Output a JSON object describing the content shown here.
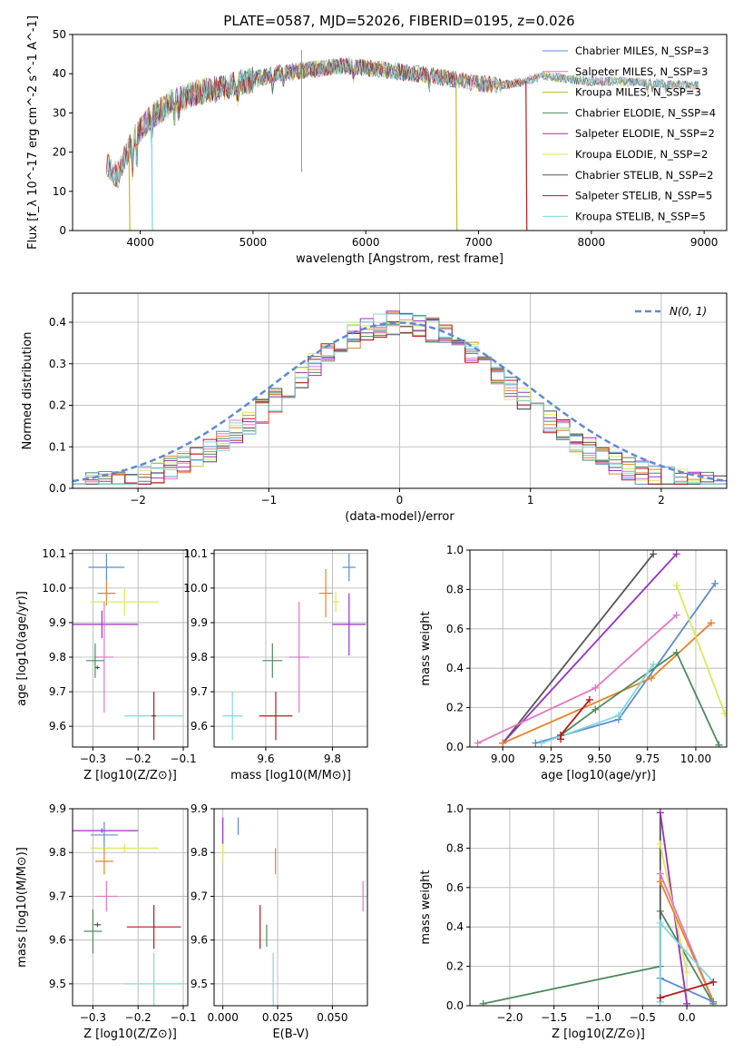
{
  "figure_title": "PLATE=0587, MJD=52026, FIBERID=0195, z=0.026",
  "colors": {
    "chabrier_miles": "#5b8ad8",
    "salpeter_miles": "#e377c2",
    "kroupa_miles": "#bcbd22",
    "chabrier_elodie": "#4e8a5a",
    "salpeter_elodie": "#9a2fc4",
    "kroupa_elodie": "#dbe85a",
    "chabrier_stelib": "#555555",
    "salpeter_stelib": "#b81a1a",
    "kroupa_stelib": "#7fd8df",
    "orange": "#e8832a",
    "gauss": "#5b8ad8",
    "grid": "#b0b0b0"
  },
  "chart_data": [
    {
      "id": "spectrum",
      "type": "line",
      "title": "PLATE=0587, MJD=52026, FIBERID=0195, z=0.026",
      "xlabel": "wavelength [Angstrom, rest frame]",
      "ylabel": "Flux [f_λ 10^-17 erg cm^-2 s^-1 A^-1]",
      "xlim": [
        3400,
        9200
      ],
      "ylim": [
        0,
        50
      ],
      "xticks": [
        4000,
        5000,
        6000,
        7000,
        8000,
        9000
      ],
      "yticks": [
        0,
        10,
        20,
        30,
        40,
        50
      ],
      "grid": false,
      "legend_position": "top-right",
      "legend": [
        {
          "label": "Chabrier MILES, N_SSP=3",
          "color_key": "chabrier_miles"
        },
        {
          "label": "Salpeter MILES, N_SSP=3",
          "color_key": "salpeter_miles"
        },
        {
          "label": "Kroupa MILES, N_SSP=3",
          "color_key": "kroupa_miles"
        },
        {
          "label": "Chabrier ELODIE, N_SSP=4",
          "color_key": "chabrier_elodie"
        },
        {
          "label": "Salpeter ELODIE, N_SSP=2",
          "color_key": "salpeter_elodie"
        },
        {
          "label": "Kroupa ELODIE, N_SSP=2",
          "color_key": "kroupa_elodie"
        },
        {
          "label": "Chabrier STELIB, N_SSP=2",
          "color_key": "chabrier_stelib"
        },
        {
          "label": "Salpeter STELIB, N_SSP=5",
          "color_key": "salpeter_stelib"
        },
        {
          "label": "Kroupa STELIB, N_SSP=5",
          "color_key": "kroupa_stelib"
        }
      ],
      "continuum": [
        [
          3700,
          17
        ],
        [
          3800,
          14
        ],
        [
          3900,
          21
        ],
        [
          4000,
          26
        ],
        [
          4100,
          29
        ],
        [
          4300,
          33
        ],
        [
          4500,
          35
        ],
        [
          4800,
          37
        ],
        [
          5000,
          38.5
        ],
        [
          5200,
          40
        ],
        [
          5500,
          41
        ],
        [
          5800,
          42
        ],
        [
          6000,
          41.5
        ],
        [
          6300,
          40.5
        ],
        [
          6600,
          39.5
        ],
        [
          6800,
          38.5
        ],
        [
          7000,
          37.5
        ],
        [
          7200,
          37
        ],
        [
          7400,
          38
        ],
        [
          7600,
          39.5
        ],
        [
          7800,
          38.5
        ],
        [
          8000,
          38
        ],
        [
          8300,
          38
        ],
        [
          8600,
          37.5
        ],
        [
          8900,
          37
        ]
      ],
      "series_ranges": [
        {
          "name": "Chabrier MILES",
          "color_key": "chabrier_miles",
          "x": [
            3700,
            8950
          ]
        },
        {
          "name": "Salpeter MILES",
          "color_key": "salpeter_miles",
          "x": [
            3700,
            8950
          ]
        },
        {
          "name": "Kroupa MILES",
          "color_key": "kroupa_miles",
          "x": [
            3700,
            8950
          ]
        },
        {
          "name": "Chabrier ELODIE",
          "color_key": "chabrier_elodie",
          "x": [
            3900,
            6800
          ]
        },
        {
          "name": "Salpeter ELODIE",
          "color_key": "salpeter_elodie",
          "x": [
            3900,
            6800
          ]
        },
        {
          "name": "Kroupa ELODIE",
          "color_key": "kroupa_elodie",
          "x": [
            3900,
            6800
          ]
        },
        {
          "name": "Chabrier STELIB",
          "color_key": "chabrier_stelib",
          "x": [
            3700,
            8950
          ]
        },
        {
          "name": "Salpeter STELIB",
          "color_key": "salpeter_stelib",
          "x": [
            3700,
            7420
          ]
        },
        {
          "name": "Kroupa STELIB",
          "color_key": "kroupa_stelib",
          "x": [
            3700,
            8950
          ]
        }
      ],
      "dropouts": [
        {
          "x": 3900,
          "color_key": "kroupa_miles"
        },
        {
          "x": 4100,
          "color_key": "kroupa_stelib"
        },
        {
          "x": 6800,
          "color_key": "kroupa_miles"
        },
        {
          "x": 7420,
          "color_key": "salpeter_stelib"
        }
      ],
      "spike": {
        "x": 5430,
        "y_low": 15,
        "y_high": 46
      }
    },
    {
      "id": "residuals",
      "type": "histogram",
      "xlabel": "(data-model)/error",
      "ylabel": "Normed distribution",
      "xlim": [
        -2.5,
        2.5
      ],
      "ylim": [
        0,
        0.47
      ],
      "xticks": [
        -2,
        -1,
        0,
        1,
        2
      ],
      "yticks": [
        0.0,
        0.1,
        0.2,
        0.3,
        0.4
      ],
      "grid": true,
      "legend_position": "top-right",
      "legend": [
        {
          "label": "N(0, 1)",
          "color_key": "gauss",
          "style": "dashed"
        }
      ],
      "bins": {
        "start": -2.5,
        "width": 0.1,
        "count": 50
      },
      "series_keys": [
        "chabrier_miles",
        "salpeter_miles",
        "orange",
        "chabrier_elodie",
        "salpeter_elodie",
        "kroupa_elodie",
        "chabrier_stelib",
        "salpeter_stelib",
        "kroupa_stelib"
      ]
    },
    {
      "id": "age_vs_Z",
      "type": "errorbar",
      "xlabel": "Z [log10(Z/Z⊙)]",
      "ylabel": "age [log10(age/yr)]",
      "xlim": [
        -0.345,
        -0.09
      ],
      "ylim": [
        9.54,
        10.11
      ],
      "xticks": [
        -0.3,
        -0.2,
        -0.1
      ],
      "yticks": [
        9.6,
        9.7,
        9.8,
        9.9,
        10.0,
        10.1
      ],
      "grid": true,
      "points": [
        {
          "color_key": "chabrier_miles",
          "x": -0.27,
          "y": 10.06,
          "xerr": 0.04,
          "yerr": 0.04
        },
        {
          "color_key": "orange",
          "x": -0.27,
          "y": 9.985,
          "xerr": 0.02,
          "yerr": 0.035
        },
        {
          "color_key": "kroupa_elodie",
          "x": -0.23,
          "y": 9.96,
          "xerr": 0.075,
          "yerr": 0.04
        },
        {
          "color_key": "salpeter_elodie",
          "x": -0.28,
          "y": 9.895,
          "xerr": 0.08,
          "yerr": 0.04
        },
        {
          "color_key": "salpeter_miles",
          "x": -0.275,
          "y": 9.8,
          "xerr": 0.02,
          "yerr": 0.16
        },
        {
          "color_key": "chabrier_elodie",
          "x": -0.295,
          "y": 9.79,
          "xerr": 0.02,
          "yerr": 0.05
        },
        {
          "color_key": "chabrier_stelib",
          "x": -0.29,
          "y": 9.77,
          "xerr": 0.005,
          "yerr": 0.005
        },
        {
          "color_key": "kroupa_stelib",
          "x": -0.165,
          "y": 9.63,
          "xerr": 0.065,
          "yerr": 0.005
        },
        {
          "color_key": "salpeter_stelib",
          "x": -0.165,
          "y": 9.63,
          "xerr": 0.005,
          "yerr": 0.07
        }
      ]
    },
    {
      "id": "age_vs_mass",
      "type": "errorbar",
      "xlabel": "mass [log10(M/M⊙)]",
      "ylabel": "",
      "xlim": [
        9.445,
        9.905
      ],
      "ylim": [
        9.54,
        10.11
      ],
      "xticks": [
        9.6,
        9.8
      ],
      "yticks": [
        9.6,
        9.7,
        9.8,
        9.9,
        10.0,
        10.1
      ],
      "grid": true,
      "points": [
        {
          "color_key": "chabrier_miles",
          "x": 9.85,
          "y": 10.06,
          "xerr": 0.02,
          "yerr": 0.04
        },
        {
          "color_key": "orange",
          "x": 9.78,
          "y": 9.985,
          "xerr": 0.02,
          "yerr": 0.07
        },
        {
          "color_key": "kroupa_elodie",
          "x": 9.81,
          "y": 9.96,
          "xerr": 0.01,
          "yerr": 0.03
        },
        {
          "color_key": "salpeter_elodie",
          "x": 9.85,
          "y": 9.895,
          "xerr": 0.05,
          "yerr": 0.09
        },
        {
          "color_key": "salpeter_miles",
          "x": 9.7,
          "y": 9.8,
          "xerr": 0.03,
          "yerr": 0.16
        },
        {
          "color_key": "chabrier_elodie",
          "x": 9.62,
          "y": 9.79,
          "xerr": 0.03,
          "yerr": 0.05
        },
        {
          "color_key": "kroupa_stelib",
          "x": 9.5,
          "y": 9.63,
          "xerr": 0.03,
          "yerr": 0.07
        },
        {
          "color_key": "salpeter_stelib",
          "x": 9.63,
          "y": 9.63,
          "xerr": 0.05,
          "yerr": 0.07
        }
      ]
    },
    {
      "id": "mass_weight_vs_age",
      "type": "line",
      "xlabel": "age [log10(age/yr)]",
      "ylabel": "mass weight",
      "xlim": [
        8.83,
        10.16
      ],
      "ylim": [
        0,
        1
      ],
      "xticks": [
        9.0,
        9.25,
        9.5,
        9.75,
        10.0
      ],
      "yticks": [
        0.0,
        0.2,
        0.4,
        0.6,
        0.8,
        1.0
      ],
      "grid": true,
      "series": [
        {
          "color_key": "chabrier_stelib",
          "points": [
            [
              9.0,
              0.02
            ],
            [
              9.78,
              0.98
            ]
          ]
        },
        {
          "color_key": "salpeter_elodie",
          "points": [
            [
              9.0,
              0.02
            ],
            [
              9.9,
              0.98
            ]
          ]
        },
        {
          "color_key": "salpeter_miles",
          "points": [
            [
              8.87,
              0.02
            ],
            [
              9.48,
              0.3
            ],
            [
              9.9,
              0.67
            ]
          ]
        },
        {
          "color_key": "chabrier_miles",
          "points": [
            [
              9.17,
              0.02
            ],
            [
              9.6,
              0.14
            ],
            [
              10.1,
              0.83
            ]
          ]
        },
        {
          "color_key": "orange",
          "points": [
            [
              9.0,
              0.02
            ],
            [
              9.77,
              0.35
            ],
            [
              10.08,
              0.63
            ]
          ]
        },
        {
          "color_key": "kroupa_elodie",
          "points": [
            [
              9.9,
              0.82
            ],
            [
              10.15,
              0.17
            ]
          ]
        },
        {
          "color_key": "chabrier_elodie",
          "points": [
            [
              9.3,
              0.06
            ],
            [
              9.48,
              0.19
            ],
            [
              9.9,
              0.48
            ],
            [
              10.12,
              0.01
            ]
          ]
        },
        {
          "color_key": "kroupa_stelib",
          "points": [
            [
              9.2,
              0.02
            ],
            [
              9.6,
              0.16
            ],
            [
              9.78,
              0.42
            ]
          ]
        },
        {
          "color_key": "salpeter_stelib",
          "points": [
            [
              9.3,
              0.04
            ],
            [
              9.3,
              0.06
            ],
            [
              9.45,
              0.24
            ]
          ]
        }
      ]
    },
    {
      "id": "mass_vs_Z",
      "type": "errorbar",
      "xlabel": "Z [log10(Z/Z⊙)]",
      "ylabel": "mass [log10(M/M⊙)]",
      "xlim": [
        -0.345,
        -0.09
      ],
      "ylim": [
        9.45,
        9.9
      ],
      "xticks": [
        -0.3,
        -0.2,
        -0.1
      ],
      "yticks": [
        9.5,
        9.6,
        9.7,
        9.8,
        9.9
      ],
      "grid": true,
      "points": [
        {
          "color_key": "chabrier_miles",
          "x": -0.275,
          "y": 9.84,
          "xerr": 0.03,
          "yerr": 0.03
        },
        {
          "color_key": "salpeter_elodie",
          "x": -0.28,
          "y": 9.85,
          "xerr": 0.08,
          "yerr": 0.005
        },
        {
          "color_key": "kroupa_elodie",
          "x": -0.23,
          "y": 9.81,
          "xerr": 0.075,
          "yerr": 0.01
        },
        {
          "color_key": "orange",
          "x": -0.275,
          "y": 9.78,
          "xerr": 0.02,
          "yerr": 0.03
        },
        {
          "color_key": "salpeter_miles",
          "x": -0.27,
          "y": 9.7,
          "xerr": 0.025,
          "yerr": 0.035
        },
        {
          "color_key": "chabrier_stelib",
          "x": -0.29,
          "y": 9.635,
          "xerr": 0.008,
          "yerr": 0.005
        },
        {
          "color_key": "chabrier_elodie",
          "x": -0.3,
          "y": 9.62,
          "xerr": 0.02,
          "yerr": 0.05
        },
        {
          "color_key": "salpeter_stelib",
          "x": -0.165,
          "y": 9.63,
          "xerr": 0.06,
          "yerr": 0.05
        },
        {
          "color_key": "kroupa_stelib",
          "x": -0.165,
          "y": 9.5,
          "xerr": 0.065,
          "yerr": 0.07
        }
      ]
    },
    {
      "id": "mass_vs_ebv",
      "type": "errorbar",
      "xlabel": "E(B-V)",
      "ylabel": "",
      "xlim": [
        -0.004,
        0.066
      ],
      "ylim": [
        9.45,
        9.9
      ],
      "xticks": [
        0.0,
        0.025,
        0.05
      ],
      "yticks": [
        9.5,
        9.6,
        9.7,
        9.8,
        9.9
      ],
      "grid": true,
      "points": [
        {
          "color_key": "salpeter_elodie",
          "x": 0.0,
          "y": 9.85,
          "xerr": 0,
          "yerr": 0.03
        },
        {
          "color_key": "chabrier_miles",
          "x": 0.007,
          "y": 9.86,
          "xerr": 0,
          "yerr": 0.02
        },
        {
          "color_key": "kroupa_elodie",
          "x": 0.0,
          "y": 9.8,
          "xerr": 0,
          "yerr": 0.02
        },
        {
          "color_key": "orange",
          "x": 0.024,
          "y": 9.78,
          "xerr": 0,
          "yerr": 0.03
        },
        {
          "color_key": "salpeter_miles",
          "x": 0.064,
          "y": 9.7,
          "xerr": 0,
          "yerr": 0.035
        },
        {
          "color_key": "salpeter_stelib",
          "x": 0.017,
          "y": 9.63,
          "xerr": 0,
          "yerr": 0.05
        },
        {
          "color_key": "chabrier_elodie",
          "x": 0.02,
          "y": 9.61,
          "xerr": 0,
          "yerr": 0.025
        },
        {
          "color_key": "kroupa_stelib",
          "x": 0.023,
          "y": 9.5,
          "xerr": 0,
          "yerr": 0.07
        }
      ]
    },
    {
      "id": "mass_weight_vs_Z",
      "type": "line",
      "xlabel": "Z [log10(Z/Z⊙)]",
      "ylabel": "mass weight",
      "xlim": [
        -2.45,
        0.45
      ],
      "ylim": [
        0,
        1
      ],
      "xticks": [
        -2.0,
        -1.5,
        -1.0,
        -0.5,
        0.0
      ],
      "yticks": [
        0.0,
        0.2,
        0.4,
        0.6,
        0.8,
        1.0
      ],
      "grid": true,
      "series": [
        {
          "color_key": "chabrier_elodie",
          "points": [
            [
              -2.3,
              0.01
            ],
            [
              -0.3,
              0.2
            ],
            [
              -0.3,
              0.48
            ],
            [
              0.3,
              0.01
            ]
          ]
        },
        {
          "color_key": "chabrier_stelib",
          "points": [
            [
              -0.3,
              0.02
            ],
            [
              -0.3,
              0.98
            ]
          ]
        },
        {
          "color_key": "salpeter_elodie",
          "points": [
            [
              -0.3,
              0.98
            ],
            [
              0.0,
              0.01
            ]
          ]
        },
        {
          "color_key": "kroupa_elodie",
          "points": [
            [
              -0.3,
              0.82
            ],
            [
              0.0,
              0.17
            ]
          ]
        },
        {
          "color_key": "salpeter_miles",
          "points": [
            [
              -0.3,
              0.67
            ],
            [
              0.3,
              0.02
            ]
          ]
        },
        {
          "color_key": "orange",
          "points": [
            [
              -0.3,
              0.63
            ],
            [
              0.3,
              0.02
            ]
          ]
        },
        {
          "color_key": "chabrier_miles",
          "points": [
            [
              -0.3,
              0.14
            ],
            [
              0.3,
              0.02
            ]
          ]
        },
        {
          "color_key": "kroupa_stelib",
          "points": [
            [
              -0.3,
              0.02
            ],
            [
              -0.3,
              0.42
            ],
            [
              0.3,
              0.12
            ]
          ]
        },
        {
          "color_key": "salpeter_stelib",
          "points": [
            [
              -0.3,
              0.04
            ],
            [
              0.3,
              0.12
            ]
          ]
        }
      ]
    }
  ]
}
